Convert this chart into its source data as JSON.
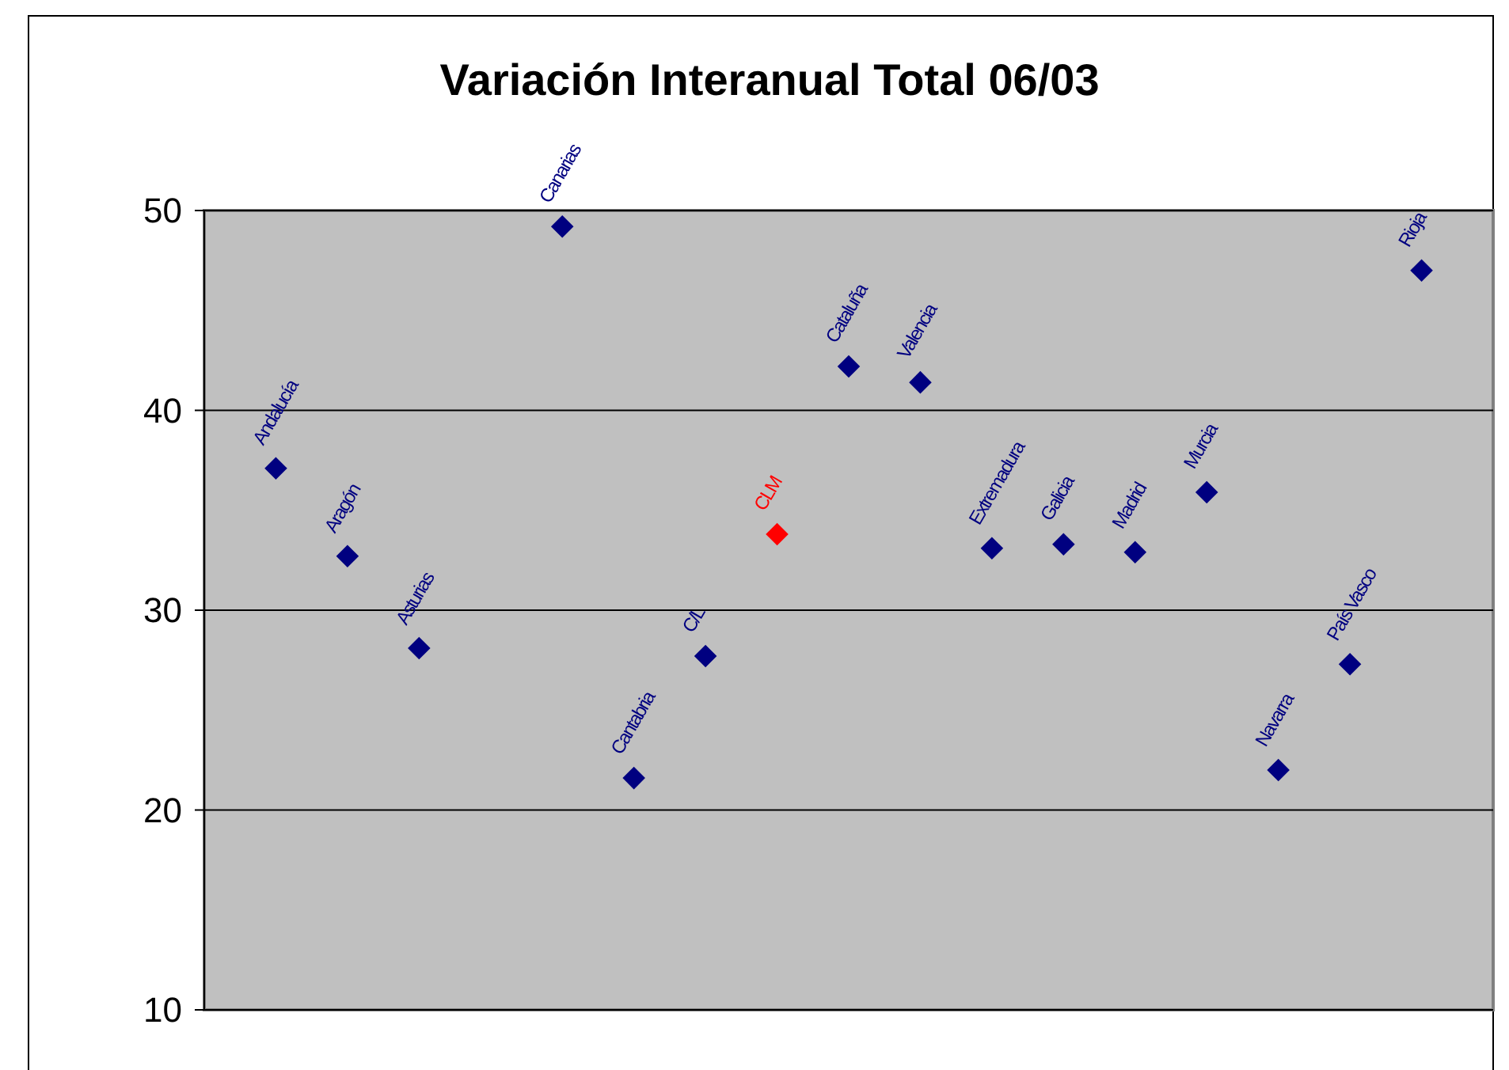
{
  "chart_data": {
    "type": "scatter",
    "title": "Variación Interanual Total 06/03",
    "categories": [
      "Andalucía",
      "Aragón",
      "Asturias",
      null,
      "Canarias",
      "Cantabria",
      "C/L",
      "CLM",
      "Cataluña",
      "Valencia",
      "Extremadura",
      "Galicia",
      "Madrid",
      "Murcia",
      "Navarra",
      "País Vasco",
      "Rioja"
    ],
    "values": [
      37.1,
      32.7,
      28.1,
      null,
      49.2,
      21.6,
      27.7,
      33.8,
      42.2,
      41.4,
      33.1,
      33.3,
      32.9,
      35.9,
      22.0,
      27.3,
      47.0
    ],
    "colors": [
      "#000080",
      "#000080",
      "#000080",
      null,
      "#000080",
      "#000080",
      "#000080",
      "#ff0000",
      "#000080",
      "#000080",
      "#000080",
      "#000080",
      "#000080",
      "#000080",
      "#000080",
      "#000080",
      "#000080"
    ],
    "ylim": [
      10,
      50
    ],
    "yticks": [
      10,
      20,
      30,
      40,
      50
    ],
    "grid": "y",
    "marker": "diamond"
  }
}
